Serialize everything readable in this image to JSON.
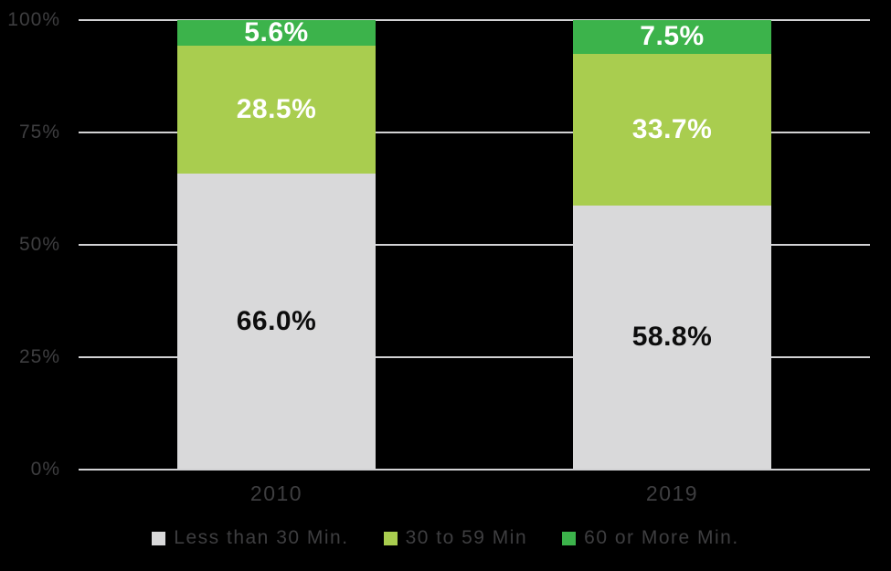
{
  "style": {
    "background": "#000000",
    "gridline_color": "#d2d2d4",
    "axis_line_color": "#d2d2d4",
    "axis_text_color": "#3e3e40",
    "legend_text_color": "#3e3e40"
  },
  "chart_data": {
    "type": "bar",
    "stacked": true,
    "title": "",
    "xlabel": "",
    "ylabel": "",
    "categories": [
      "2010",
      "2019"
    ],
    "series": [
      {
        "name": "Less than 30 Min.",
        "color": "#d9d9da",
        "label_color": "#0d0d0d",
        "values": [
          66.0,
          58.8
        ],
        "labels": [
          "66.0%",
          "58.8%"
        ]
      },
      {
        "name": "30 to 59 Min",
        "color": "#a9cd4f",
        "label_color": "#ffffff",
        "values": [
          28.5,
          33.7
        ],
        "labels": [
          "28.5%",
          "33.7%"
        ]
      },
      {
        "name": "60 or More Min.",
        "color": "#3cb34b",
        "label_color": "#ffffff",
        "values": [
          5.6,
          7.5
        ],
        "labels": [
          "5.6%",
          "7.5%"
        ]
      }
    ],
    "ylim": [
      0,
      100
    ],
    "y_ticks": [
      {
        "value": 0,
        "label": "0%"
      },
      {
        "value": 25,
        "label": "25%"
      },
      {
        "value": 50,
        "label": "50%"
      },
      {
        "value": 75,
        "label": "75%"
      },
      {
        "value": 100,
        "label": "100%"
      }
    ],
    "grid": true,
    "legend_position": "bottom"
  }
}
